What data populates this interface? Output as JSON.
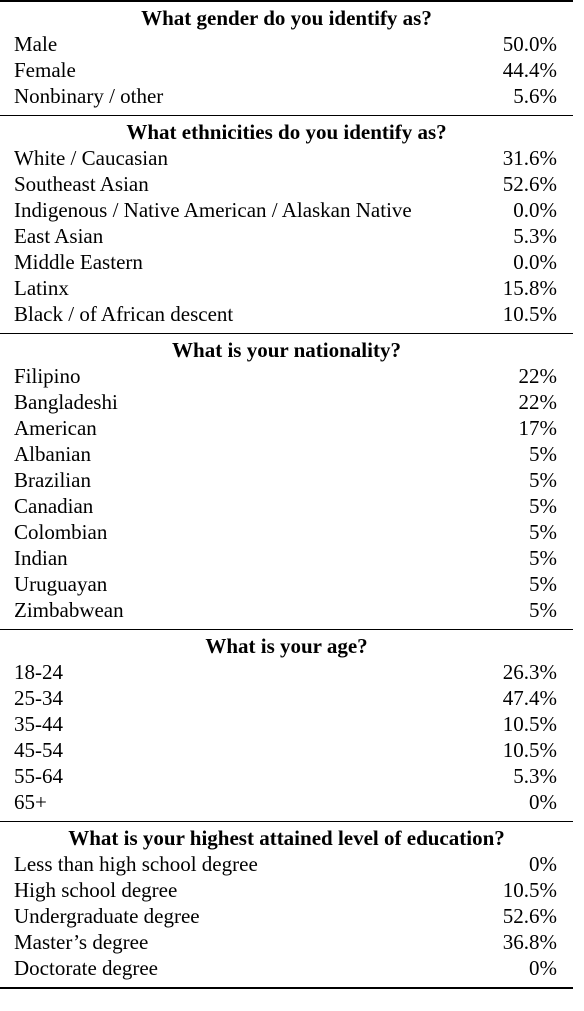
{
  "sections": [
    {
      "title": "What gender do you identify as?",
      "rows": [
        {
          "label": "Male",
          "value": "50.0%"
        },
        {
          "label": "Female",
          "value": "44.4%"
        },
        {
          "label": "Nonbinary / other",
          "value": "5.6%"
        }
      ]
    },
    {
      "title": "What ethnicities do you identify as?",
      "rows": [
        {
          "label": "White / Caucasian",
          "value": "31.6%"
        },
        {
          "label": "Southeast Asian",
          "value": "52.6%"
        },
        {
          "label": "Indigenous / Native American / Alaskan Native",
          "value": "0.0%"
        },
        {
          "label": "East Asian",
          "value": "5.3%"
        },
        {
          "label": "Middle Eastern",
          "value": "0.0%"
        },
        {
          "label": "Latinx",
          "value": "15.8%"
        },
        {
          "label": "Black / of African descent",
          "value": "10.5%"
        }
      ]
    },
    {
      "title": "What is your nationality?",
      "rows": [
        {
          "label": "Filipino",
          "value": "22%"
        },
        {
          "label": "Bangladeshi",
          "value": "22%"
        },
        {
          "label": "American",
          "value": "17%"
        },
        {
          "label": "Albanian",
          "value": "5%"
        },
        {
          "label": "Brazilian",
          "value": "5%"
        },
        {
          "label": "Canadian",
          "value": "5%"
        },
        {
          "label": "Colombian",
          "value": "5%"
        },
        {
          "label": "Indian",
          "value": "5%"
        },
        {
          "label": "Uruguayan",
          "value": "5%"
        },
        {
          "label": "Zimbabwean",
          "value": "5%"
        }
      ]
    },
    {
      "title": "What is your age?",
      "rows": [
        {
          "label": "18-24",
          "value": "26.3%"
        },
        {
          "label": "25-34",
          "value": "47.4%"
        },
        {
          "label": "35-44",
          "value": "10.5%"
        },
        {
          "label": "45-54",
          "value": "10.5%"
        },
        {
          "label": "55-64",
          "value": "5.3%"
        },
        {
          "label": "65+",
          "value": "0%"
        }
      ]
    },
    {
      "title": "What is your highest attained level of education?",
      "rows": [
        {
          "label": "Less than high school degree",
          "value": "0%"
        },
        {
          "label": "High school degree",
          "value": "10.5%"
        },
        {
          "label": "Undergraduate degree",
          "value": "52.6%"
        },
        {
          "label": "Master’s degree",
          "value": "36.8%"
        },
        {
          "label": "Doctorate degree",
          "value": "0%"
        }
      ]
    }
  ]
}
